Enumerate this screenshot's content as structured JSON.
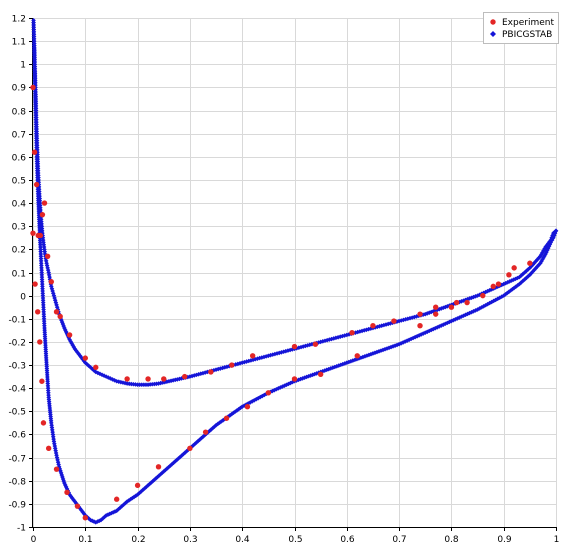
{
  "chart_data": {
    "type": "scatter",
    "xlim": [
      0,
      1
    ],
    "ylim": [
      -1,
      1.2
    ],
    "x_ticks": [
      "0",
      "0.1",
      "0.2",
      "0.3",
      "0.4",
      "0.5",
      "0.6",
      "0.7",
      "0.8",
      "0.9",
      "1"
    ],
    "y_ticks": [
      "-1",
      "-0.9",
      "-0.8",
      "-0.7",
      "-0.6",
      "-0.5",
      "-0.4",
      "-0.3",
      "-0.2",
      "-0.1",
      "0",
      "0.1",
      "0.2",
      "0.3",
      "0.4",
      "0.5",
      "0.6",
      "0.7",
      "0.8",
      "0.9",
      "1",
      "1.1",
      "1.2"
    ],
    "grid": true,
    "legend_position": "top-right",
    "series": [
      {
        "name": "Experiment",
        "color": "#e32626",
        "marker": "circle",
        "x": [
          0.0,
          0.003,
          0.007,
          0.01,
          0.014,
          0.018,
          0.022,
          0.028,
          0.035,
          0.045,
          0.052,
          0.07,
          0.1,
          0.12,
          0.18,
          0.22,
          0.25,
          0.29,
          0.34,
          0.38,
          0.42,
          0.5,
          0.54,
          0.61,
          0.65,
          0.69,
          0.74,
          0.77,
          0.81,
          0.89,
          0.91,
          0.92,
          0.95,
          0.0,
          0.004,
          0.009,
          0.013,
          0.017,
          0.02,
          0.03,
          0.045,
          0.065,
          0.085,
          0.1,
          0.16,
          0.2,
          0.24,
          0.3,
          0.33,
          0.37,
          0.41,
          0.45,
          0.5,
          0.55,
          0.62,
          0.74,
          0.77,
          0.8,
          0.83,
          0.86,
          0.88
        ],
        "y": [
          0.9,
          0.62,
          0.48,
          0.26,
          0.26,
          0.35,
          0.4,
          0.17,
          0.06,
          -0.07,
          -0.09,
          -0.17,
          -0.27,
          -0.31,
          -0.36,
          -0.36,
          -0.36,
          -0.35,
          -0.33,
          -0.3,
          -0.26,
          -0.22,
          -0.21,
          -0.16,
          -0.13,
          -0.11,
          -0.08,
          -0.05,
          -0.03,
          0.05,
          0.09,
          0.12,
          0.14,
          0.27,
          0.05,
          -0.07,
          -0.2,
          -0.37,
          -0.55,
          -0.66,
          -0.75,
          -0.85,
          -0.91,
          -0.96,
          -0.88,
          -0.82,
          -0.74,
          -0.66,
          -0.59,
          -0.53,
          -0.48,
          -0.42,
          -0.36,
          -0.34,
          -0.26,
          -0.13,
          -0.08,
          -0.05,
          -0.03,
          0.0,
          0.04
        ]
      },
      {
        "name": "PBICGSTAB",
        "color": "#1515d8",
        "marker": "diamond",
        "upper_surface": {
          "x": [
            0.001,
            0.002,
            0.003,
            0.004,
            0.005,
            0.006,
            0.007,
            0.008,
            0.009,
            0.01,
            0.012,
            0.014,
            0.016,
            0.018,
            0.02,
            0.023,
            0.026,
            0.03,
            0.035,
            0.04,
            0.045,
            0.05,
            0.06,
            0.07,
            0.08,
            0.09,
            0.1,
            0.12,
            0.14,
            0.16,
            0.18,
            0.2,
            0.22,
            0.24,
            0.26,
            0.28,
            0.3,
            0.35,
            0.4,
            0.45,
            0.5,
            0.55,
            0.6,
            0.65,
            0.7,
            0.75,
            0.8,
            0.85,
            0.9,
            0.93,
            0.95,
            0.97,
            0.98,
            0.99,
            0.995,
            1.0
          ],
          "y": [
            1.19,
            1.12,
            1.04,
            0.96,
            0.88,
            0.8,
            0.72,
            0.65,
            0.59,
            0.53,
            0.45,
            0.38,
            0.32,
            0.27,
            0.23,
            0.18,
            0.14,
            0.1,
            0.04,
            0.0,
            -0.04,
            -0.08,
            -0.14,
            -0.19,
            -0.23,
            -0.26,
            -0.29,
            -0.33,
            -0.35,
            -0.37,
            -0.38,
            -0.385,
            -0.385,
            -0.38,
            -0.37,
            -0.36,
            -0.35,
            -0.32,
            -0.29,
            -0.26,
            -0.23,
            -0.2,
            -0.17,
            -0.14,
            -0.11,
            -0.08,
            -0.04,
            0.0,
            0.05,
            0.08,
            0.12,
            0.17,
            0.21,
            0.24,
            0.27,
            0.28
          ]
        },
        "lower_surface": {
          "x": [
            0.001,
            0.002,
            0.003,
            0.004,
            0.005,
            0.006,
            0.007,
            0.008,
            0.009,
            0.01,
            0.012,
            0.014,
            0.016,
            0.018,
            0.02,
            0.022,
            0.025,
            0.028,
            0.03,
            0.035,
            0.04,
            0.045,
            0.05,
            0.06,
            0.07,
            0.08,
            0.09,
            0.1,
            0.11,
            0.12,
            0.13,
            0.14,
            0.15,
            0.16,
            0.17,
            0.18,
            0.2,
            0.22,
            0.25,
            0.3,
            0.35,
            0.4,
            0.45,
            0.5,
            0.55,
            0.6,
            0.65,
            0.7,
            0.75,
            0.8,
            0.85,
            0.9,
            0.93,
            0.95,
            0.97,
            0.98,
            0.99,
            0.995,
            1.0
          ],
          "y": [
            1.18,
            1.1,
            1.0,
            0.9,
            0.8,
            0.71,
            0.62,
            0.55,
            0.48,
            0.42,
            0.32,
            0.22,
            0.13,
            0.04,
            -0.05,
            -0.14,
            -0.26,
            -0.37,
            -0.44,
            -0.55,
            -0.63,
            -0.69,
            -0.74,
            -0.81,
            -0.86,
            -0.89,
            -0.92,
            -0.95,
            -0.97,
            -0.98,
            -0.97,
            -0.95,
            -0.94,
            -0.93,
            -0.91,
            -0.89,
            -0.86,
            -0.82,
            -0.76,
            -0.66,
            -0.56,
            -0.48,
            -0.42,
            -0.37,
            -0.33,
            -0.29,
            -0.25,
            -0.21,
            -0.16,
            -0.11,
            -0.06,
            0.0,
            0.05,
            0.09,
            0.14,
            0.18,
            0.23,
            0.25,
            0.28
          ]
        }
      }
    ]
  }
}
